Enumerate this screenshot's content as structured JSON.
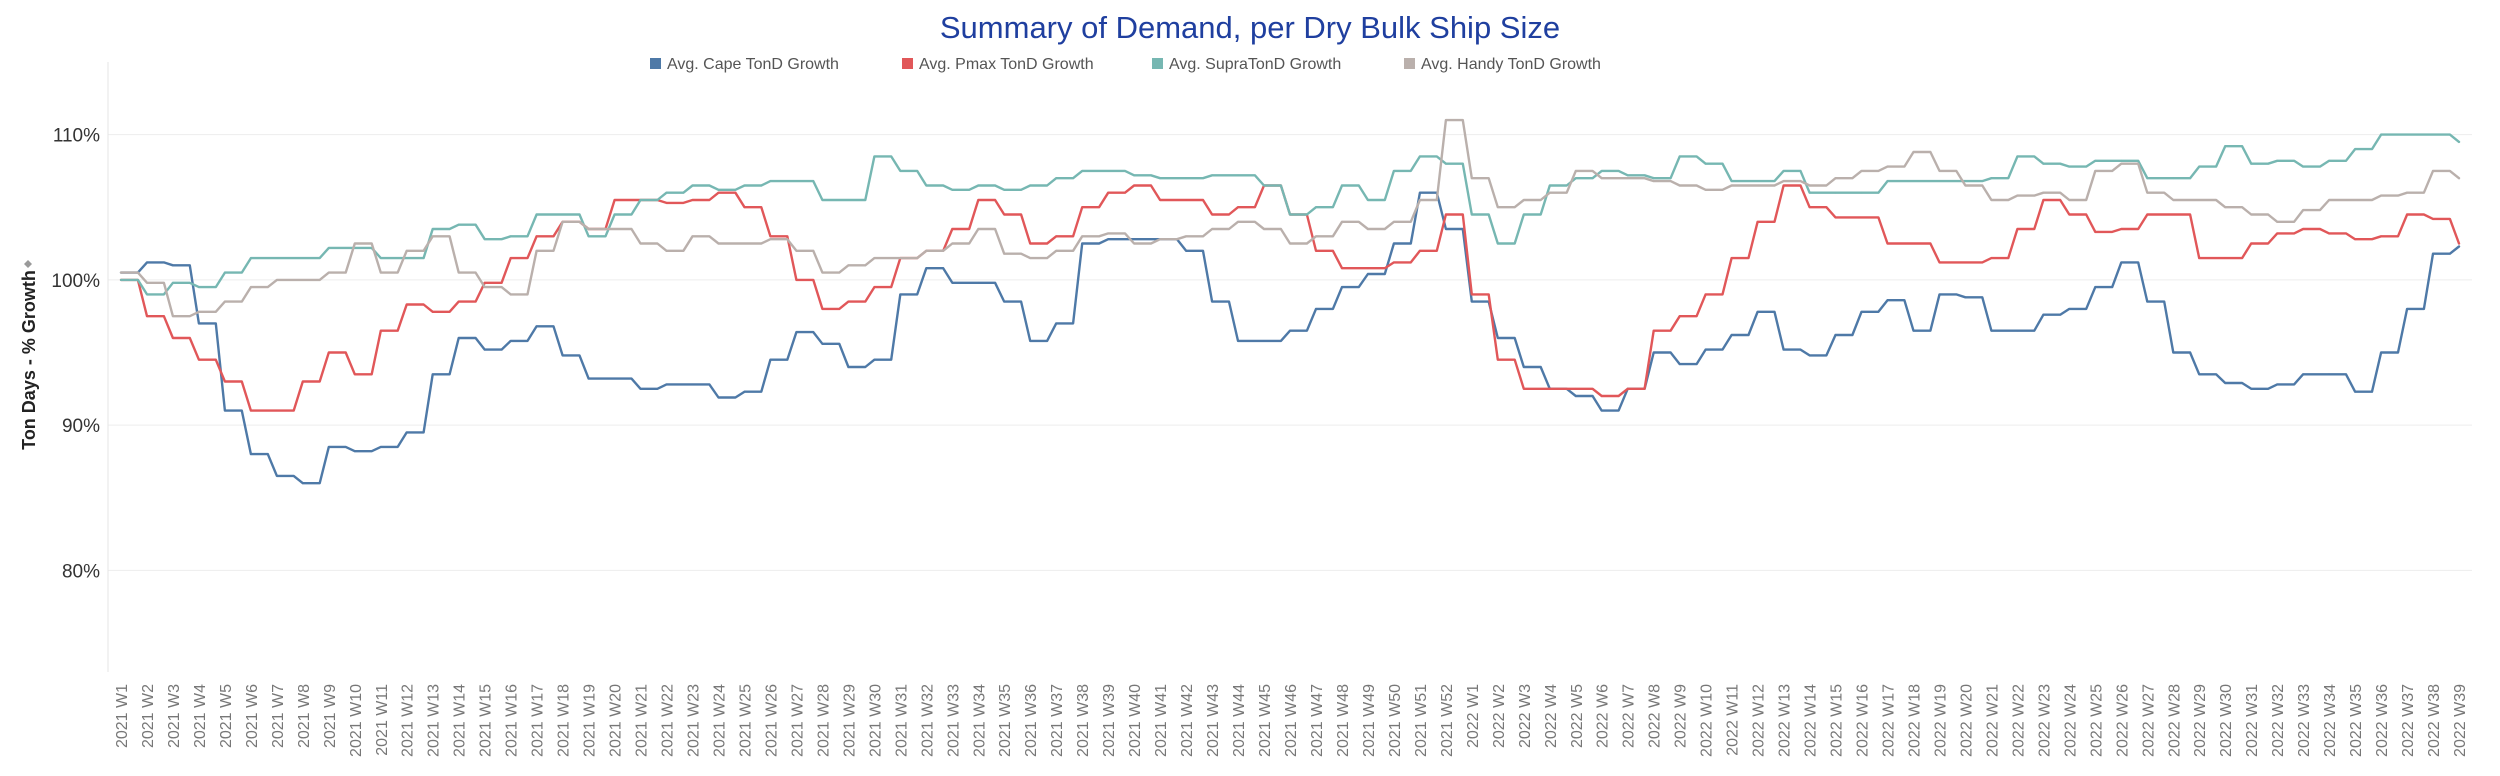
{
  "chart_data": {
    "type": "line",
    "title": "Summary of Demand, per Dry Bulk Ship Size",
    "ylabel": "Ton Days - % Growth",
    "ylabel_icon": "sort-icon",
    "xlabel": "",
    "ylim": [
      73,
      115
    ],
    "y_ticks": [
      80,
      90,
      100,
      110
    ],
    "y_tick_labels": [
      "80%",
      "90%",
      "100%",
      "110%"
    ],
    "grid": true,
    "legend_position": "top",
    "categories": [
      "2021 W1",
      "2021 W2",
      "2021 W3",
      "2021 W4",
      "2021 W5",
      "2021 W6",
      "2021 W7",
      "2021 W8",
      "2021 W9",
      "2021 W10",
      "2021 W11",
      "2021 W12",
      "2021 W13",
      "2021 W14",
      "2021 W15",
      "2021 W16",
      "2021 W17",
      "2021 W18",
      "2021 W19",
      "2021 W20",
      "2021 W21",
      "2021 W22",
      "2021 W23",
      "2021 W24",
      "2021 W25",
      "2021 W26",
      "2021 W27",
      "2021 W28",
      "2021 W29",
      "2021 W30",
      "2021 W31",
      "2021 W32",
      "2021 W33",
      "2021 W34",
      "2021 W35",
      "2021 W36",
      "2021 W37",
      "2021 W38",
      "2021 W39",
      "2021 W40",
      "2021 W41",
      "2021 W42",
      "2021 W43",
      "2021 W44",
      "2021 W45",
      "2021 W46",
      "2021 W47",
      "2021 W48",
      "2021 W49",
      "2021 W50",
      "2021 W51",
      "2021 W52",
      "2022 W1",
      "2022 W2",
      "2022 W3",
      "2022 W4",
      "2022 W5",
      "2022 W6",
      "2022 W7",
      "2022 W8",
      "2022 W9",
      "2022 W10",
      "2022 W11",
      "2022 W12",
      "2022 W13",
      "2022 W14",
      "2022 W15",
      "2022 W16",
      "2022 W17",
      "2022 W18",
      "2022 W19",
      "2022 W20",
      "2022 W21",
      "2022 W22",
      "2022 W23",
      "2022 W24",
      "2022 W25",
      "2022 W26",
      "2022 W27",
      "2022 W28",
      "2022 W29",
      "2022 W30",
      "2022 W31",
      "2022 W32",
      "2022 W33",
      "2022 W34",
      "2022 W35",
      "2022 W36",
      "2022 W37",
      "2022 W38",
      "2022 W39"
    ],
    "series": [
      {
        "name": "Avg. Cape TonD Growth",
        "color": "#4e79a7",
        "values": [
          100.5,
          101.2,
          101.0,
          97.0,
          91.0,
          88.0,
          86.5,
          86.0,
          88.5,
          88.2,
          88.5,
          89.5,
          93.5,
          96.0,
          95.2,
          95.8,
          96.8,
          94.8,
          93.2,
          93.2,
          92.5,
          92.8,
          92.8,
          91.9,
          92.3,
          94.5,
          96.4,
          95.6,
          94.0,
          94.5,
          99.0,
          100.8,
          99.8,
          99.8,
          98.5,
          95.8,
          97.0,
          102.5,
          102.8,
          102.8,
          102.8,
          102.0,
          98.5,
          95.8,
          95.8,
          96.5,
          98.0,
          99.5,
          100.4,
          102.5,
          106.0,
          103.5,
          98.5,
          96.0,
          94.0,
          92.5,
          92.0,
          91.0,
          92.5,
          95.0,
          94.2,
          95.2,
          96.2,
          97.8,
          95.2,
          94.8,
          96.2,
          97.8,
          98.6,
          96.5,
          99.0,
          98.8,
          96.5,
          96.5,
          97.6,
          98.0,
          99.5,
          101.2,
          98.5,
          95.0,
          93.5,
          92.9,
          92.5,
          92.8,
          93.5,
          93.5,
          92.3,
          95.0,
          98.0,
          101.8,
          102.3
        ]
      },
      {
        "name": "Avg. Pmax TonD Growth",
        "color": "#e15759",
        "values": [
          100.0,
          97.5,
          96.0,
          94.5,
          93.0,
          91.0,
          91.0,
          93.0,
          95.0,
          93.5,
          96.5,
          98.3,
          97.8,
          98.5,
          99.8,
          101.5,
          103.0,
          104.0,
          103.5,
          105.5,
          105.5,
          105.3,
          105.5,
          106.0,
          105.0,
          103.0,
          100.0,
          98.0,
          98.5,
          99.5,
          101.5,
          102.0,
          103.5,
          105.5,
          104.5,
          102.5,
          103.0,
          105.0,
          106.0,
          106.5,
          105.5,
          105.5,
          104.5,
          105.0,
          106.5,
          104.5,
          102.0,
          100.8,
          100.8,
          101.2,
          102.0,
          104.5,
          99.0,
          94.5,
          92.5,
          92.5,
          92.5,
          92.0,
          92.5,
          96.5,
          97.5,
          99.0,
          101.5,
          104.0,
          106.5,
          105.0,
          104.3,
          104.3,
          102.5,
          102.5,
          101.2,
          101.2,
          101.5,
          103.5,
          105.5,
          104.5,
          103.3,
          103.5,
          104.5,
          104.5,
          101.5,
          101.5,
          102.5,
          103.2,
          103.5,
          103.2,
          102.8,
          103.0,
          104.5,
          104.2,
          102.5
        ]
      },
      {
        "name": "Avg. SupraTonD Growth",
        "color": "#76b7b2",
        "values": [
          100.0,
          99.0,
          99.8,
          99.5,
          100.5,
          101.5,
          101.5,
          101.5,
          102.2,
          102.2,
          101.5,
          101.5,
          103.5,
          103.8,
          102.8,
          103.0,
          104.5,
          104.5,
          103.0,
          104.5,
          105.5,
          106.0,
          106.5,
          106.2,
          106.5,
          106.8,
          106.8,
          105.5,
          105.5,
          108.5,
          107.5,
          106.5,
          106.2,
          106.5,
          106.2,
          106.5,
          107.0,
          107.5,
          107.5,
          107.2,
          107.0,
          107.0,
          107.2,
          107.2,
          106.5,
          104.5,
          105.0,
          106.5,
          105.5,
          107.5,
          108.5,
          108.0,
          104.5,
          102.5,
          104.5,
          106.5,
          107.0,
          107.5,
          107.2,
          107.0,
          108.5,
          108.0,
          106.8,
          106.8,
          107.5,
          106.0,
          106.0,
          106.0,
          106.8,
          106.8,
          106.8,
          106.8,
          107.0,
          108.5,
          108.0,
          107.8,
          108.2,
          108.2,
          107.0,
          107.0,
          107.8,
          109.2,
          108.0,
          108.2,
          107.8,
          108.2,
          109.0,
          110.0,
          110.0,
          110.0,
          109.5
        ]
      },
      {
        "name": "Avg. Handy TonD Growth",
        "color": "#bab0ac",
        "values": [
          100.5,
          99.8,
          97.5,
          97.8,
          98.5,
          99.5,
          100.0,
          100.0,
          100.5,
          102.5,
          100.5,
          102.0,
          103.0,
          100.5,
          99.5,
          99.0,
          102.0,
          104.0,
          103.5,
          103.5,
          102.5,
          102.0,
          103.0,
          102.5,
          102.5,
          102.8,
          102.0,
          100.5,
          101.0,
          101.5,
          101.5,
          102.0,
          102.5,
          103.5,
          101.8,
          101.5,
          102.0,
          103.0,
          103.2,
          102.5,
          102.8,
          103.0,
          103.5,
          104.0,
          103.5,
          102.5,
          103.0,
          104.0,
          103.5,
          104.0,
          105.5,
          111.0,
          107.0,
          105.0,
          105.5,
          106.0,
          107.5,
          107.0,
          107.0,
          106.8,
          106.5,
          106.2,
          106.5,
          106.5,
          106.8,
          106.5,
          107.0,
          107.5,
          107.8,
          108.8,
          107.5,
          106.5,
          105.5,
          105.8,
          106.0,
          105.5,
          107.5,
          108.0,
          106.0,
          105.5,
          105.5,
          105.0,
          104.5,
          104.0,
          104.8,
          105.5,
          105.5,
          105.8,
          106.0,
          107.5,
          107.0
        ]
      }
    ]
  }
}
